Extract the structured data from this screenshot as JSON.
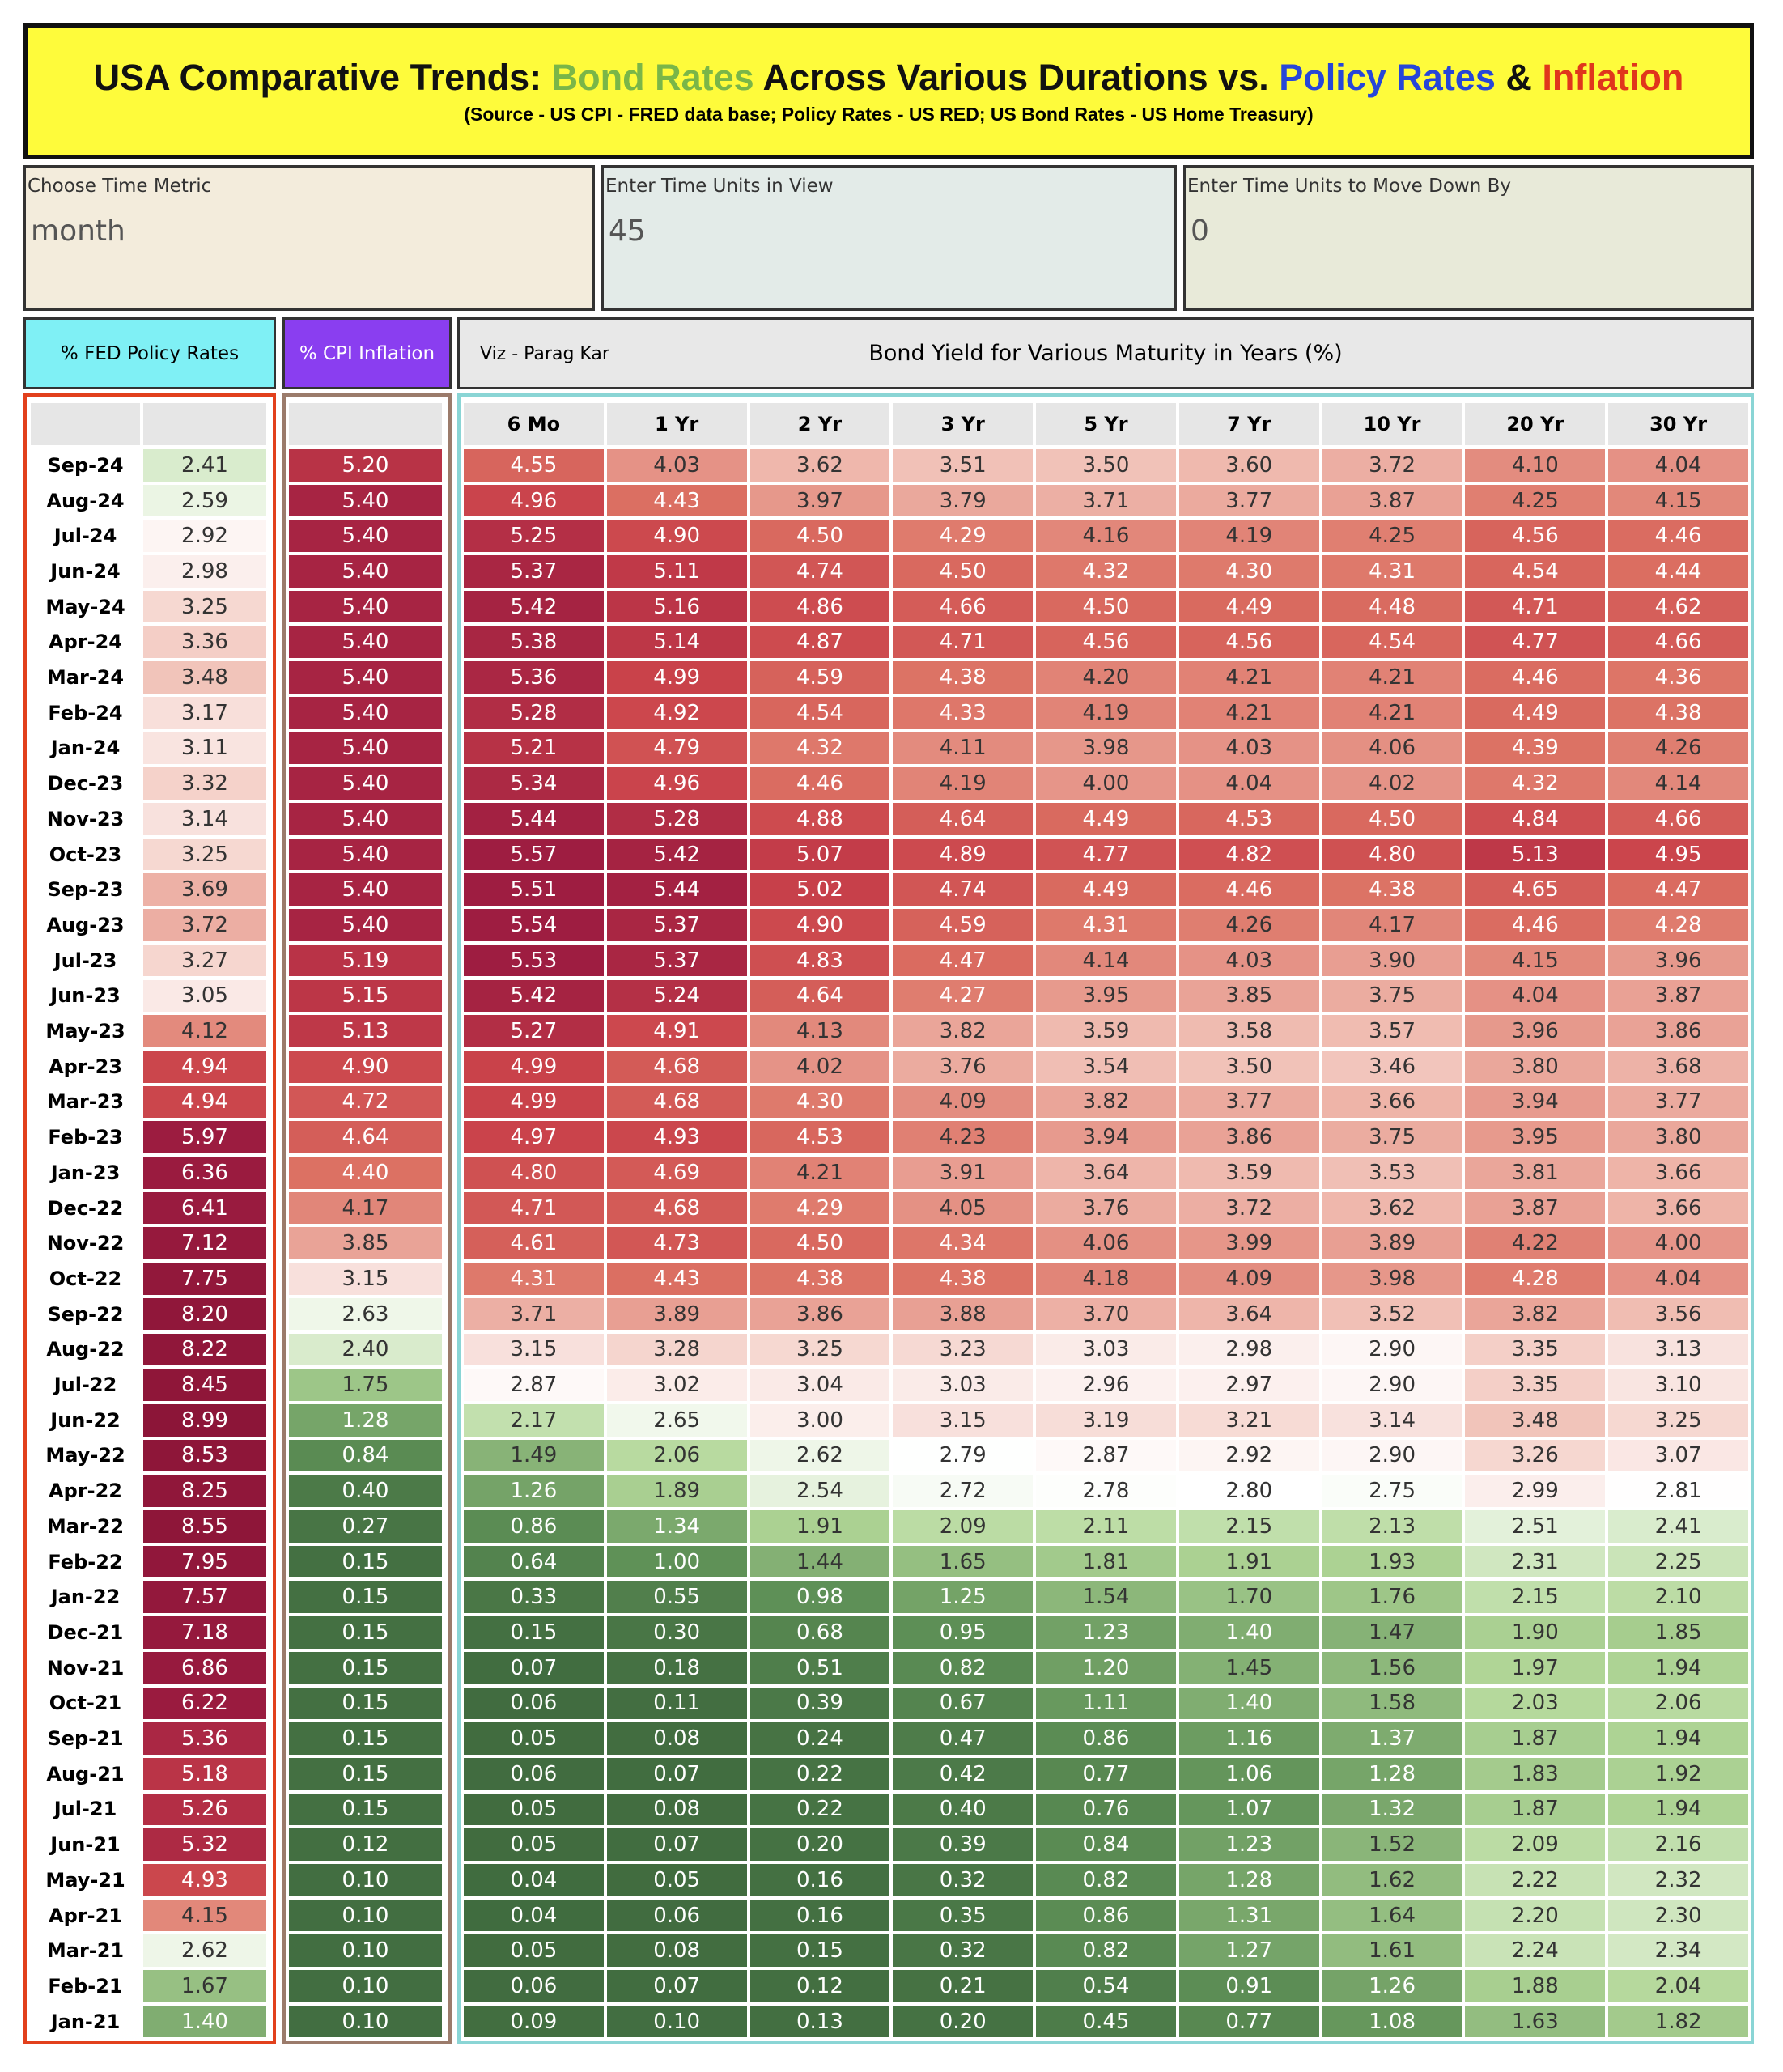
{
  "header": {
    "title_parts": [
      {
        "text": "USA Comparative Trends: ",
        "color": "#111111"
      },
      {
        "text": "Bond Rates",
        "color": "#7ab648"
      },
      {
        "text": " Across Various Durations vs. ",
        "color": "#111111"
      },
      {
        "text": "Policy Rates",
        "color": "#2746d8"
      },
      {
        "text": " & ",
        "color": "#111111"
      },
      {
        "text": "Inflation",
        "color": "#e0361c"
      }
    ],
    "subtitle": "(Source - US CPI - FRED data base; Policy Rates - US RED; US Bond Rates - US Home Treasury)",
    "background": "#fefb3b"
  },
  "controls": [
    {
      "label": "Choose Time Metric",
      "value": "month",
      "background": "#f3ecdc"
    },
    {
      "label": "Enter Time Units in View",
      "value": "45",
      "background": "#e3ebe8"
    },
    {
      "label": "Enter Time Units to Move Down By",
      "value": "0",
      "background": "#e8ead9"
    }
  ],
  "panels": {
    "policy_title": "% FED Policy Rates",
    "policy_color": "#7ff0f5",
    "policy_border": "#e2401c",
    "cpi_title": "% CPI Inflation",
    "cpi_color": "#8a3ef0",
    "cpi_border": "#9b7b6b",
    "credit": "Viz - Parag Kar",
    "bond_title": "Bond Yield for Various Maturity in Years (%)",
    "bond_border": "#8ad5d5"
  },
  "table": {
    "columns": [
      "6 Mo",
      "1 Yr",
      "2 Yr",
      "3 Yr",
      "5 Yr",
      "7 Yr",
      "10 Yr",
      "20 Yr",
      "30 Yr"
    ],
    "rows": [
      [
        "Sep-24",
        "2.41",
        "5.20",
        "4.55",
        "4.03",
        "3.62",
        "3.51",
        "3.50",
        "3.60",
        "3.72",
        "4.10",
        "4.04"
      ],
      [
        "Aug-24",
        "2.59",
        "5.40",
        "4.96",
        "4.43",
        "3.97",
        "3.79",
        "3.71",
        "3.77",
        "3.87",
        "4.25",
        "4.15"
      ],
      [
        "Jul-24",
        "2.92",
        "5.40",
        "5.25",
        "4.90",
        "4.50",
        "4.29",
        "4.16",
        "4.19",
        "4.25",
        "4.56",
        "4.46"
      ],
      [
        "Jun-24",
        "2.98",
        "5.40",
        "5.37",
        "5.11",
        "4.74",
        "4.50",
        "4.32",
        "4.30",
        "4.31",
        "4.54",
        "4.44"
      ],
      [
        "May-24",
        "3.25",
        "5.40",
        "5.42",
        "5.16",
        "4.86",
        "4.66",
        "4.50",
        "4.49",
        "4.48",
        "4.71",
        "4.62"
      ],
      [
        "Apr-24",
        "3.36",
        "5.40",
        "5.38",
        "5.14",
        "4.87",
        "4.71",
        "4.56",
        "4.56",
        "4.54",
        "4.77",
        "4.66"
      ],
      [
        "Mar-24",
        "3.48",
        "5.40",
        "5.36",
        "4.99",
        "4.59",
        "4.38",
        "4.20",
        "4.21",
        "4.21",
        "4.46",
        "4.36"
      ],
      [
        "Feb-24",
        "3.17",
        "5.40",
        "5.28",
        "4.92",
        "4.54",
        "4.33",
        "4.19",
        "4.21",
        "4.21",
        "4.49",
        "4.38"
      ],
      [
        "Jan-24",
        "3.11",
        "5.40",
        "5.21",
        "4.79",
        "4.32",
        "4.11",
        "3.98",
        "4.03",
        "4.06",
        "4.39",
        "4.26"
      ],
      [
        "Dec-23",
        "3.32",
        "5.40",
        "5.34",
        "4.96",
        "4.46",
        "4.19",
        "4.00",
        "4.04",
        "4.02",
        "4.32",
        "4.14"
      ],
      [
        "Nov-23",
        "3.14",
        "5.40",
        "5.44",
        "5.28",
        "4.88",
        "4.64",
        "4.49",
        "4.53",
        "4.50",
        "4.84",
        "4.66"
      ],
      [
        "Oct-23",
        "3.25",
        "5.40",
        "5.57",
        "5.42",
        "5.07",
        "4.89",
        "4.77",
        "4.82",
        "4.80",
        "5.13",
        "4.95"
      ],
      [
        "Sep-23",
        "3.69",
        "5.40",
        "5.51",
        "5.44",
        "5.02",
        "4.74",
        "4.49",
        "4.46",
        "4.38",
        "4.65",
        "4.47"
      ],
      [
        "Aug-23",
        "3.72",
        "5.40",
        "5.54",
        "5.37",
        "4.90",
        "4.59",
        "4.31",
        "4.26",
        "4.17",
        "4.46",
        "4.28"
      ],
      [
        "Jul-23",
        "3.27",
        "5.19",
        "5.53",
        "5.37",
        "4.83",
        "4.47",
        "4.14",
        "4.03",
        "3.90",
        "4.15",
        "3.96"
      ],
      [
        "Jun-23",
        "3.05",
        "5.15",
        "5.42",
        "5.24",
        "4.64",
        "4.27",
        "3.95",
        "3.85",
        "3.75",
        "4.04",
        "3.87"
      ],
      [
        "May-23",
        "4.12",
        "5.13",
        "5.27",
        "4.91",
        "4.13",
        "3.82",
        "3.59",
        "3.58",
        "3.57",
        "3.96",
        "3.86"
      ],
      [
        "Apr-23",
        "4.94",
        "4.90",
        "4.99",
        "4.68",
        "4.02",
        "3.76",
        "3.54",
        "3.50",
        "3.46",
        "3.80",
        "3.68"
      ],
      [
        "Mar-23",
        "4.94",
        "4.72",
        "4.99",
        "4.68",
        "4.30",
        "4.09",
        "3.82",
        "3.77",
        "3.66",
        "3.94",
        "3.77"
      ],
      [
        "Feb-23",
        "5.97",
        "4.64",
        "4.97",
        "4.93",
        "4.53",
        "4.23",
        "3.94",
        "3.86",
        "3.75",
        "3.95",
        "3.80"
      ],
      [
        "Jan-23",
        "6.36",
        "4.40",
        "4.80",
        "4.69",
        "4.21",
        "3.91",
        "3.64",
        "3.59",
        "3.53",
        "3.81",
        "3.66"
      ],
      [
        "Dec-22",
        "6.41",
        "4.17",
        "4.71",
        "4.68",
        "4.29",
        "4.05",
        "3.76",
        "3.72",
        "3.62",
        "3.87",
        "3.66"
      ],
      [
        "Nov-22",
        "7.12",
        "3.85",
        "4.61",
        "4.73",
        "4.50",
        "4.34",
        "4.06",
        "3.99",
        "3.89",
        "4.22",
        "4.00"
      ],
      [
        "Oct-22",
        "7.75",
        "3.15",
        "4.31",
        "4.43",
        "4.38",
        "4.38",
        "4.18",
        "4.09",
        "3.98",
        "4.28",
        "4.04"
      ],
      [
        "Sep-22",
        "8.20",
        "2.63",
        "3.71",
        "3.89",
        "3.86",
        "3.88",
        "3.70",
        "3.64",
        "3.52",
        "3.82",
        "3.56"
      ],
      [
        "Aug-22",
        "8.22",
        "2.40",
        "3.15",
        "3.28",
        "3.25",
        "3.23",
        "3.03",
        "2.98",
        "2.90",
        "3.35",
        "3.13"
      ],
      [
        "Jul-22",
        "8.45",
        "1.75",
        "2.87",
        "3.02",
        "3.04",
        "3.03",
        "2.96",
        "2.97",
        "2.90",
        "3.35",
        "3.10"
      ],
      [
        "Jun-22",
        "8.99",
        "1.28",
        "2.17",
        "2.65",
        "3.00",
        "3.15",
        "3.19",
        "3.21",
        "3.14",
        "3.48",
        "3.25"
      ],
      [
        "May-22",
        "8.53",
        "0.84",
        "1.49",
        "2.06",
        "2.62",
        "2.79",
        "2.87",
        "2.92",
        "2.90",
        "3.26",
        "3.07"
      ],
      [
        "Apr-22",
        "8.25",
        "0.40",
        "1.26",
        "1.89",
        "2.54",
        "2.72",
        "2.78",
        "2.80",
        "2.75",
        "2.99",
        "2.81"
      ],
      [
        "Mar-22",
        "8.55",
        "0.27",
        "0.86",
        "1.34",
        "1.91",
        "2.09",
        "2.11",
        "2.15",
        "2.13",
        "2.51",
        "2.41"
      ],
      [
        "Feb-22",
        "7.95",
        "0.15",
        "0.64",
        "1.00",
        "1.44",
        "1.65",
        "1.81",
        "1.91",
        "1.93",
        "2.31",
        "2.25"
      ],
      [
        "Jan-22",
        "7.57",
        "0.15",
        "0.33",
        "0.55",
        "0.98",
        "1.25",
        "1.54",
        "1.70",
        "1.76",
        "2.15",
        "2.10"
      ],
      [
        "Dec-21",
        "7.18",
        "0.15",
        "0.15",
        "0.30",
        "0.68",
        "0.95",
        "1.23",
        "1.40",
        "1.47",
        "1.90",
        "1.85"
      ],
      [
        "Nov-21",
        "6.86",
        "0.15",
        "0.07",
        "0.18",
        "0.51",
        "0.82",
        "1.20",
        "1.45",
        "1.56",
        "1.97",
        "1.94"
      ],
      [
        "Oct-21",
        "6.22",
        "0.15",
        "0.06",
        "0.11",
        "0.39",
        "0.67",
        "1.11",
        "1.40",
        "1.58",
        "2.03",
        "2.06"
      ],
      [
        "Sep-21",
        "5.36",
        "0.15",
        "0.05",
        "0.08",
        "0.24",
        "0.47",
        "0.86",
        "1.16",
        "1.37",
        "1.87",
        "1.94"
      ],
      [
        "Aug-21",
        "5.18",
        "0.15",
        "0.06",
        "0.07",
        "0.22",
        "0.42",
        "0.77",
        "1.06",
        "1.28",
        "1.83",
        "1.92"
      ],
      [
        "Jul-21",
        "5.26",
        "0.15",
        "0.05",
        "0.08",
        "0.22",
        "0.40",
        "0.76",
        "1.07",
        "1.32",
        "1.87",
        "1.94"
      ],
      [
        "Jun-21",
        "5.32",
        "0.12",
        "0.05",
        "0.07",
        "0.20",
        "0.39",
        "0.84",
        "1.23",
        "1.52",
        "2.09",
        "2.16"
      ],
      [
        "May-21",
        "4.93",
        "0.10",
        "0.04",
        "0.05",
        "0.16",
        "0.32",
        "0.82",
        "1.28",
        "1.62",
        "2.22",
        "2.32"
      ],
      [
        "Apr-21",
        "4.15",
        "0.10",
        "0.04",
        "0.06",
        "0.16",
        "0.35",
        "0.86",
        "1.31",
        "1.64",
        "2.20",
        "2.30"
      ],
      [
        "Mar-21",
        "2.62",
        "0.10",
        "0.05",
        "0.08",
        "0.15",
        "0.32",
        "0.82",
        "1.27",
        "1.61",
        "2.24",
        "2.34"
      ],
      [
        "Feb-21",
        "1.67",
        "0.10",
        "0.06",
        "0.07",
        "0.12",
        "0.21",
        "0.54",
        "0.91",
        "1.26",
        "1.88",
        "2.04"
      ],
      [
        "Jan-21",
        "1.40",
        "0.10",
        "0.09",
        "0.10",
        "0.13",
        "0.20",
        "0.45",
        "0.77",
        "1.08",
        "1.63",
        "1.82"
      ]
    ]
  },
  "color_scale": [
    {
      "value": 0,
      "color": "#3f6a3e"
    },
    {
      "value": 1,
      "color": "#5f9157"
    },
    {
      "value": 2,
      "color": "#b2d798"
    },
    {
      "value": 2.8,
      "color": "#ffffff"
    },
    {
      "value": 3.6,
      "color": "#efb9ae"
    },
    {
      "value": 4.4,
      "color": "#dc7163"
    },
    {
      "value": 5.0,
      "color": "#c9414a"
    },
    {
      "value": 5.5,
      "color": "#9e1d41"
    },
    {
      "value": 9,
      "color": "#8c1538"
    }
  ]
}
